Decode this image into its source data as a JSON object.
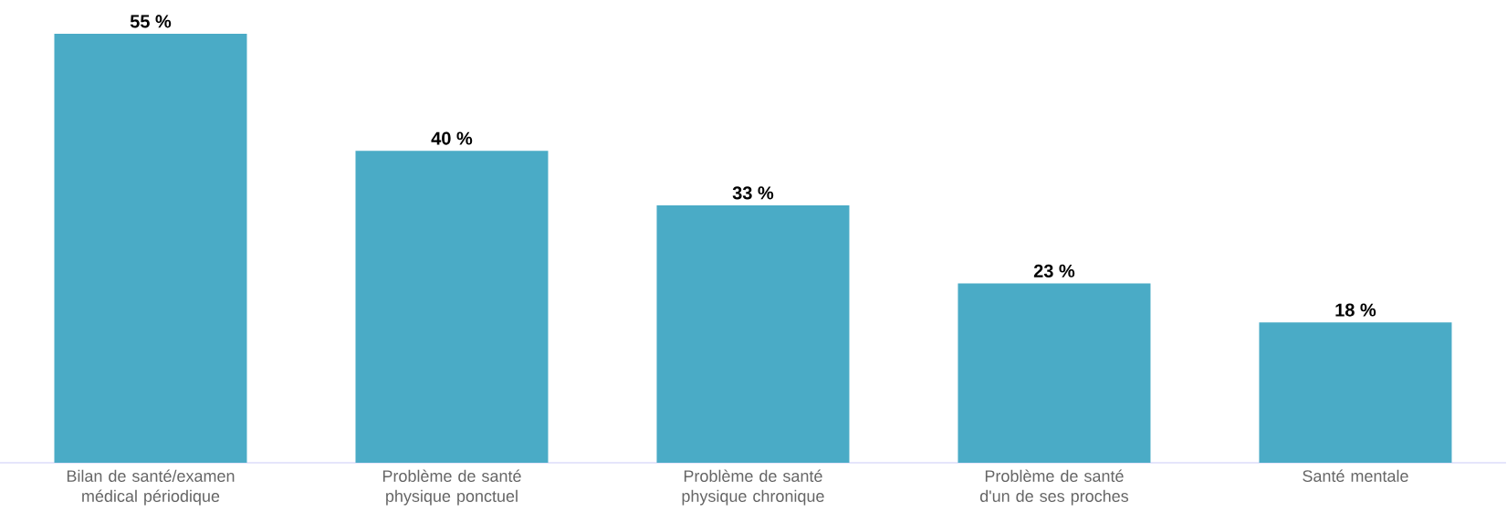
{
  "chart_data": {
    "type": "bar",
    "categories": [
      "Bilan de santé/examen médical périodique",
      "Problème de santé physique ponctuel",
      "Problème de santé physique chronique",
      "Problème de santé d'un de ses proches",
      "Santé mentale"
    ],
    "values": [
      55,
      40,
      33,
      23,
      18
    ],
    "value_labels": [
      "55 %",
      "40 %",
      "33 %",
      "23 %",
      "18 %"
    ],
    "color": "#4aabc6"
  }
}
